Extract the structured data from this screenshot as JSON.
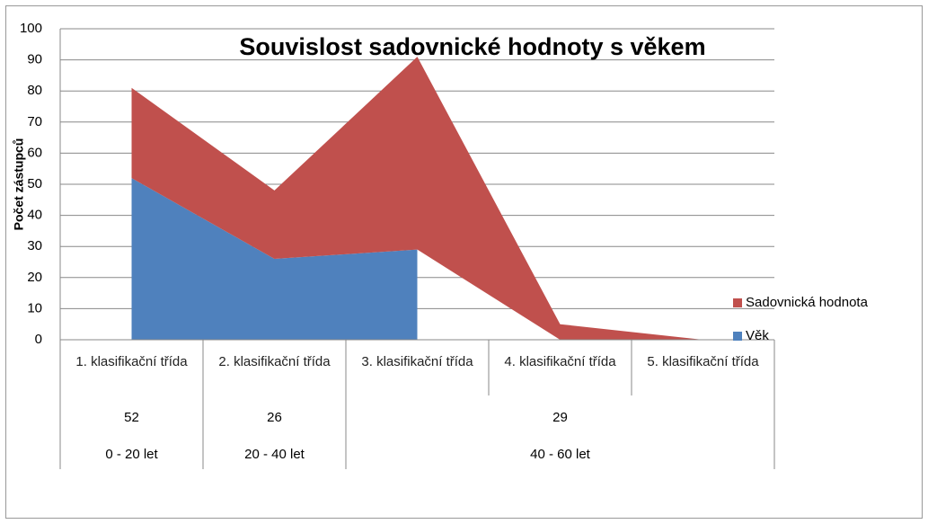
{
  "chart_data": {
    "type": "stacked_area",
    "title": "Souvislost sadovnické hodnoty s věkem",
    "y_label": "Počet zástupců",
    "categories": [
      "1. klasifikační třída",
      "2. klasifikační třída",
      "3. klasifikační třída",
      "4. klasifikační třída",
      "5. klasifikační třída"
    ],
    "category_levels": [
      [
        {
          "label": "52",
          "span": 1
        },
        {
          "label": "26",
          "span": 1
        },
        {
          "label": "29",
          "span": 3
        }
      ],
      [
        {
          "label": "0 - 20 let",
          "span": 1
        },
        {
          "label": "20 - 40 let",
          "span": 1
        },
        {
          "label": "40 - 60 let",
          "span": 3
        }
      ]
    ],
    "series": [
      {
        "name": "Věk",
        "color": "#4f81bd",
        "values": [
          52,
          26,
          29,
          null,
          null
        ]
      },
      {
        "name": "Sadovnická hodnota",
        "color": "#c0504d",
        "values": [
          29,
          22,
          62,
          5,
          0
        ]
      }
    ],
    "ylim": [
      0,
      100
    ],
    "yticks": [
      0,
      10,
      20,
      30,
      40,
      50,
      60,
      70,
      80,
      90,
      100
    ],
    "grid": true,
    "legend": "right"
  }
}
